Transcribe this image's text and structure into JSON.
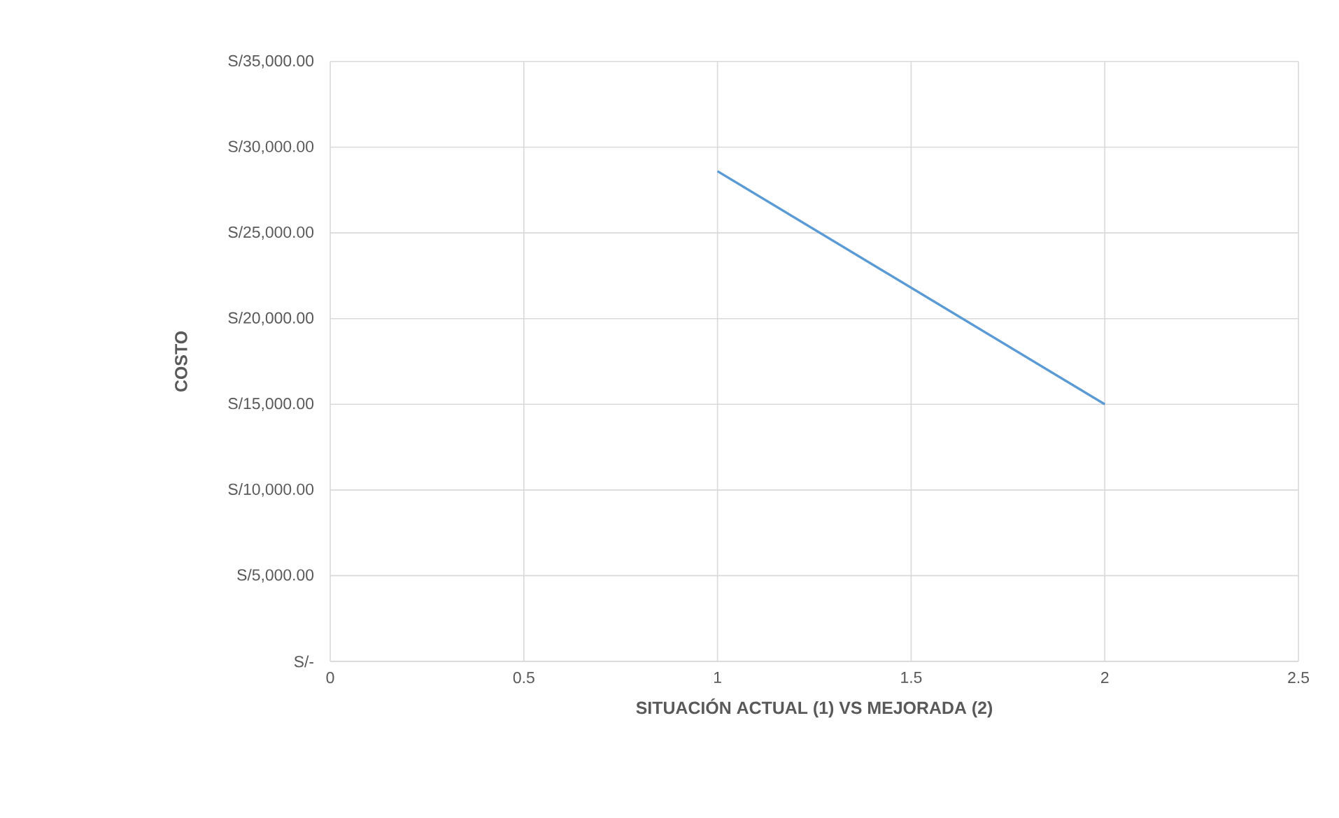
{
  "chart_data": {
    "type": "line",
    "xlabel": "SITUACIÓN ACTUAL (1) VS MEJORADA (2)",
    "ylabel": "COSTO",
    "x": [
      1,
      2
    ],
    "series": [
      {
        "color": "#5b9bd5",
        "values": [
          28600,
          15000
        ]
      }
    ],
    "xlim": [
      0,
      2.5
    ],
    "xticks": [
      0,
      0.5,
      1,
      1.5,
      2,
      2.5
    ],
    "ylim": [
      0,
      35000
    ],
    "yticks": [
      {
        "value": 0,
        "label": "S/-"
      },
      {
        "value": 5000,
        "label": "S/5,000.00"
      },
      {
        "value": 10000,
        "label": "S/10,000.00"
      },
      {
        "value": 15000,
        "label": "S/15,000.00"
      },
      {
        "value": 20000,
        "label": "S/20,000.00"
      },
      {
        "value": 25000,
        "label": "S/25,000.00"
      },
      {
        "value": 30000,
        "label": "S/30,000.00"
      },
      {
        "value": 35000,
        "label": "S/35,000.00"
      }
    ],
    "grid": true,
    "marker": "none"
  }
}
